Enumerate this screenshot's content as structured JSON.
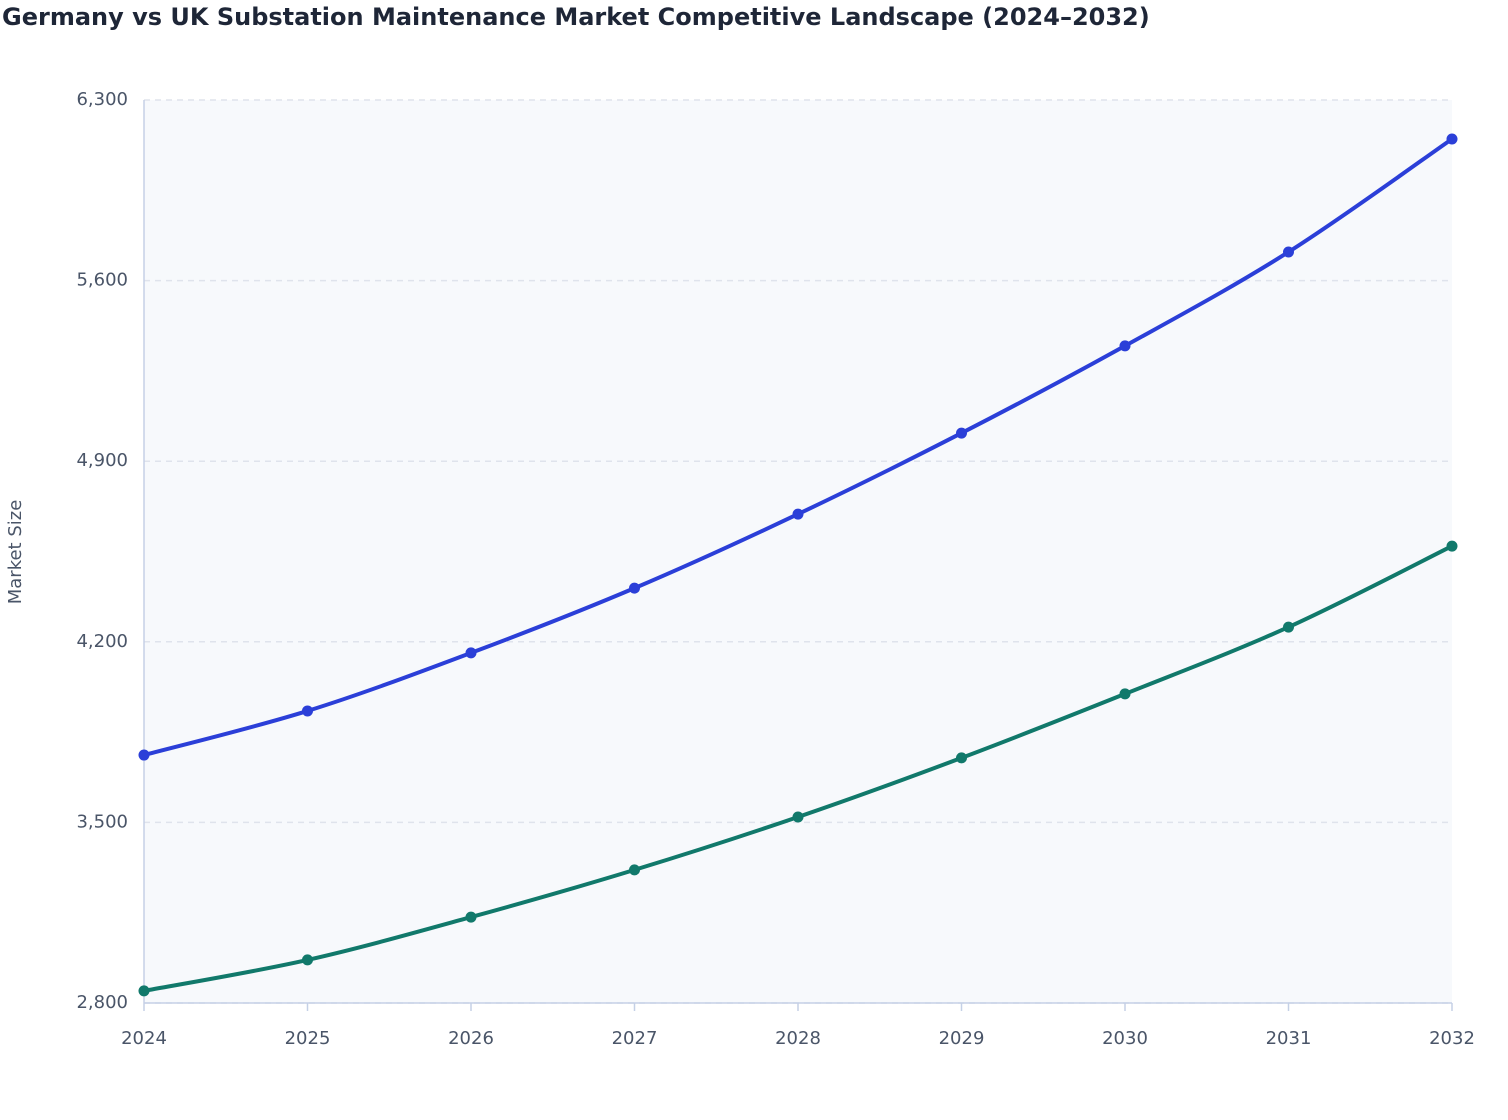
{
  "chart_data": {
    "type": "line",
    "title": "Germany vs UK Substation Maintenance Market Competitive Landscape (2024–2032)",
    "y_label": "Market Size",
    "categories": [
      "2024",
      "2025",
      "2026",
      "2027",
      "2028",
      "2029",
      "2030",
      "2031",
      "2032"
    ],
    "series": [
      {
        "color": "#2b3fd8",
        "values": [
          3761,
          3932,
          4157,
          4408,
          4695,
          5009,
          5347,
          5711,
          6149
        ]
      },
      {
        "color": "#11796b",
        "values": [
          2847,
          2967,
          3133,
          3316,
          3521,
          3750,
          3998,
          4257,
          4571
        ]
      }
    ],
    "ylim": [
      2800,
      6300
    ],
    "yticks": [
      {
        "value": 2800,
        "label": "2,800"
      },
      {
        "value": 3500,
        "label": "3,500"
      },
      {
        "value": 4200,
        "label": "4,200"
      },
      {
        "value": 4900,
        "label": "4,900"
      },
      {
        "value": 5600,
        "label": "5,600"
      },
      {
        "value": 6300,
        "label": "6,300"
      }
    ],
    "grid": true
  }
}
